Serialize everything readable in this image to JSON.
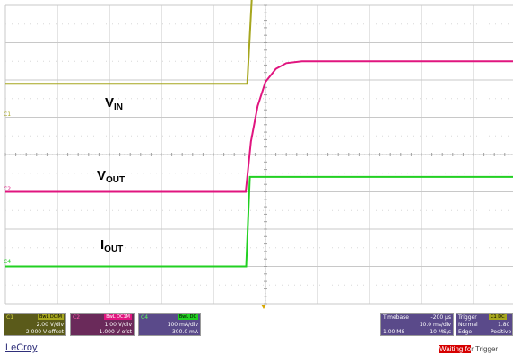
{
  "waveform_labels": {
    "vin": {
      "main": "V",
      "sub": "IN"
    },
    "vout": {
      "main": "V",
      "sub": "OUT"
    },
    "iout": {
      "main": "I",
      "sub": "OUT"
    }
  },
  "channel_markers": {
    "c1": "C1",
    "c2": "C2",
    "c4": "C4"
  },
  "channels": [
    {
      "id": "C1",
      "tag": "BwL DCIM",
      "scale": "2.00 V/div",
      "offset": "2.000 V offset",
      "color": "#a6a61e",
      "bg": "#5a5a1a"
    },
    {
      "id": "C2",
      "tag": "BwL DC1M",
      "scale": "1.00 V/div",
      "offset": "-1.000 V ofst",
      "color": "#e0157f",
      "bg": "#6a2a5a"
    },
    {
      "id": "C4",
      "tag": "BwL DC",
      "scale": "100 mA/div",
      "offset": "-300.0 mA",
      "color": "#22d022",
      "bg": "#5a4a8a"
    }
  ],
  "timebase": {
    "label": "Timebase",
    "delay": "-200 µs",
    "per_div": "10.0 ms/div",
    "samples": "1.00 MS",
    "rate": "10 MS/s"
  },
  "trigger": {
    "label": "Trigger",
    "channel": "C1 DC",
    "mode": "Normal",
    "level": "1.80",
    "type": "Edge",
    "slope": "Positive"
  },
  "trigger_status": {
    "highlight": "Waiting fo",
    "rest": "r Trigger"
  },
  "logo": "LeCroy",
  "colors": {
    "vin": "#a6a61e",
    "vout": "#e0157f",
    "iout": "#22d022",
    "grid": "#c8c8c8"
  },
  "chart_data": {
    "type": "line",
    "x_divisions": 10,
    "y_divisions": 8,
    "series": [
      {
        "name": "VIN",
        "x": [
          0,
          4.65,
          4.78,
          10
        ],
        "y": [
          1.9,
          1.9,
          5.3,
          5.3
        ]
      },
      {
        "name": "VOUT",
        "x": [
          0,
          4.62,
          4.72,
          4.85,
          5,
          5.2,
          5.4,
          5.7,
          10
        ],
        "y": [
          -1.0,
          -1.0,
          0.35,
          1.3,
          1.95,
          2.3,
          2.45,
          2.5,
          2.5
        ]
      },
      {
        "name": "IOUT",
        "x": [
          0,
          4.63,
          4.7,
          10
        ],
        "y": [
          -3.0,
          -3.0,
          -0.6,
          -0.6
        ]
      }
    ]
  }
}
